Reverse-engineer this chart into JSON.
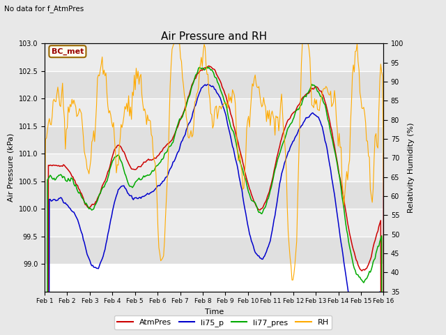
{
  "title": "Air Pressure and RH",
  "top_left_note": "No data for f_AtmPres",
  "annotation_box": "BC_met",
  "xlabel": "Time",
  "ylabel_left": "Air Pressure (kPa)",
  "ylabel_right": "Relativity Humidity (%)",
  "ylim_left": [
    98.5,
    103.0
  ],
  "ylim_right": [
    35,
    100
  ],
  "yticks_left": [
    99.0,
    99.5,
    100.0,
    100.5,
    101.0,
    101.5,
    102.0,
    102.5,
    103.0
  ],
  "yticks_right": [
    35,
    40,
    45,
    50,
    55,
    60,
    65,
    70,
    75,
    80,
    85,
    90,
    95,
    100
  ],
  "xtick_labels": [
    "Feb 1",
    "Feb 2",
    "Feb 3",
    "Feb 4",
    "Feb 5",
    "Feb 6",
    "Feb 7",
    "Feb 8",
    "Feb 9",
    "Feb 10",
    "Feb 11",
    "Feb 12",
    "Feb 13",
    "Feb 14",
    "Feb 15",
    "Feb 16"
  ],
  "n_days": 16,
  "color_atm": "#cc0000",
  "color_li75": "#0000cc",
  "color_li77": "#00aa00",
  "color_rh": "#ffaa00",
  "bg_color": "#e8e8e8",
  "plot_bg": "#ffffff",
  "grid_color": "#cccccc",
  "legend_entries": [
    "AtmPres",
    "li75_p",
    "li77_pres",
    "RH"
  ]
}
